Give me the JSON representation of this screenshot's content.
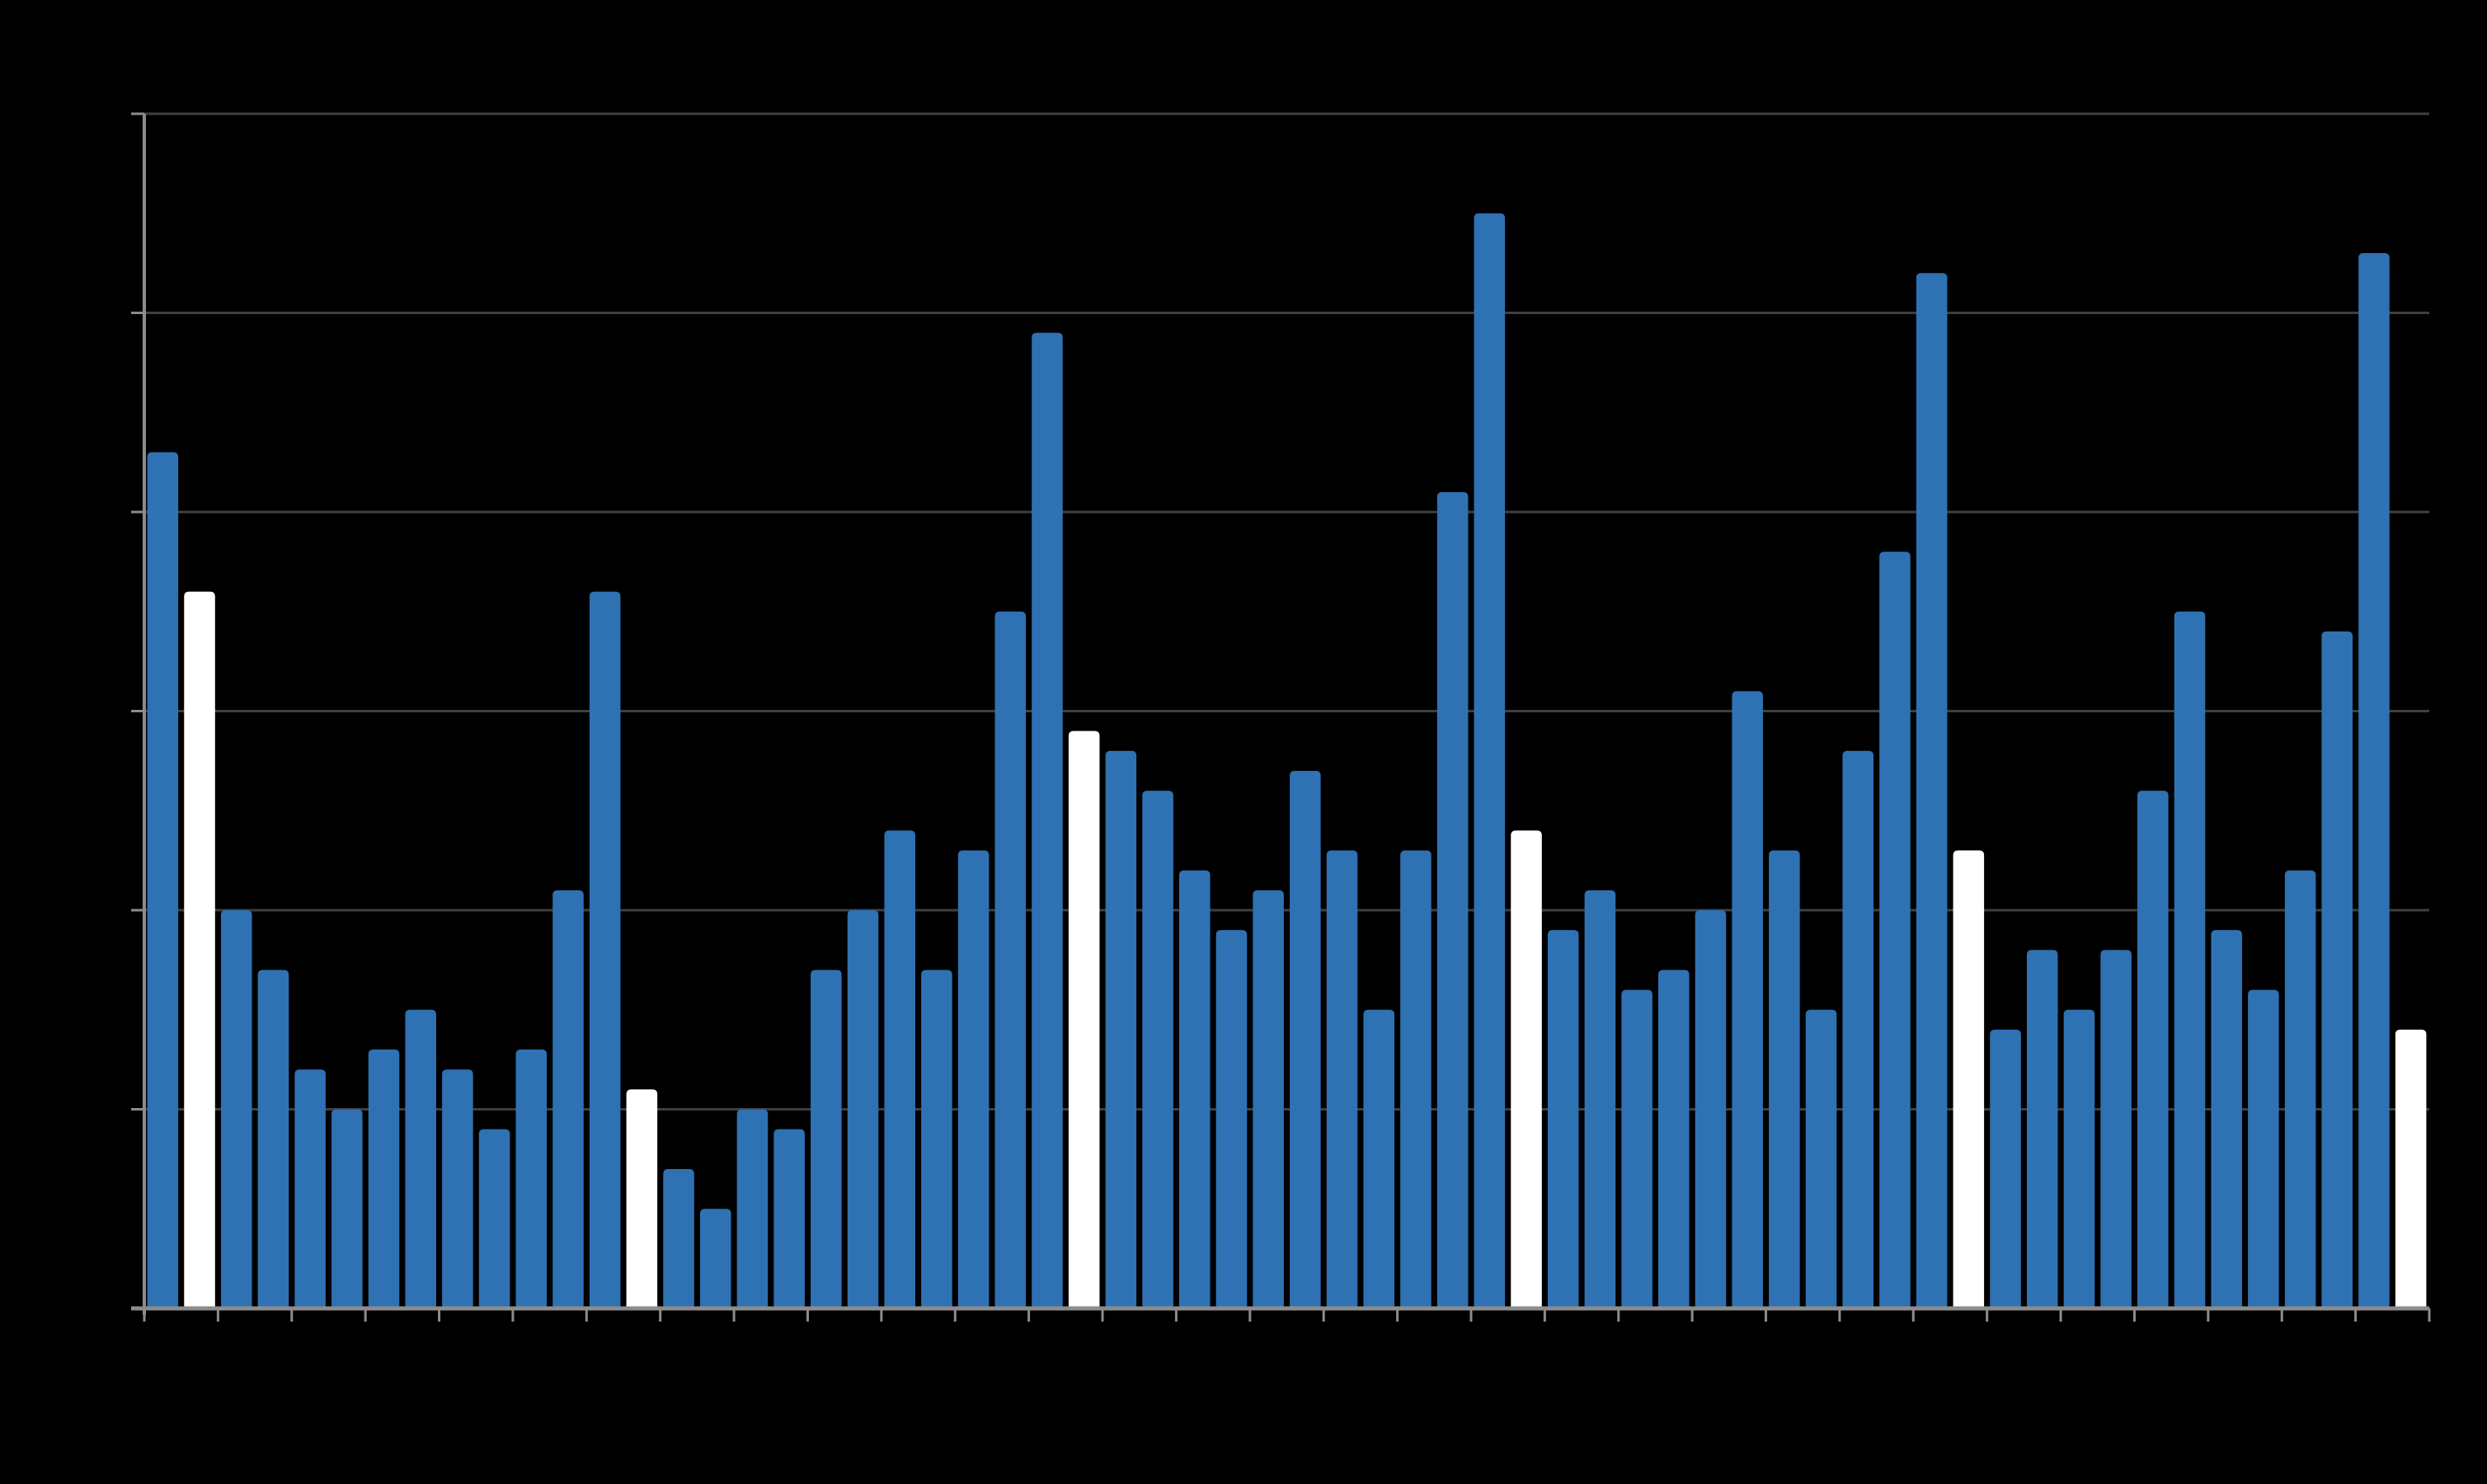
{
  "chart_data": {
    "type": "bar",
    "title": "",
    "xlabel": "",
    "ylabel": "",
    "ylim": [
      0,
      6
    ],
    "grid": true,
    "background_color": "#000000",
    "bar_color": "#2e72b4",
    "highlight_color": "#ffffff",
    "gridline_color": "#3f3f3f",
    "axis_color": "#8c8c8c",
    "highlighted_indices": [
      1,
      13,
      25,
      37,
      49,
      61
    ],
    "values": [
      4.3,
      3.6,
      2.0,
      1.7,
      1.2,
      1.0,
      1.3,
      1.5,
      1.2,
      0.9,
      1.3,
      2.1,
      3.6,
      1.1,
      0.7,
      0.5,
      1.0,
      0.9,
      1.7,
      2.0,
      2.4,
      1.7,
      2.3,
      3.5,
      4.9,
      2.9,
      2.8,
      2.6,
      2.2,
      1.9,
      2.1,
      2.7,
      2.3,
      1.5,
      2.3,
      4.1,
      5.5,
      2.4,
      1.9,
      2.1,
      1.6,
      1.7,
      2.0,
      3.1,
      2.3,
      1.5,
      2.8,
      3.8,
      5.2,
      2.3,
      1.4,
      1.8,
      1.5,
      1.8,
      2.6,
      3.5,
      1.9,
      1.6,
      2.2,
      3.4,
      5.3,
      1.4
    ]
  }
}
